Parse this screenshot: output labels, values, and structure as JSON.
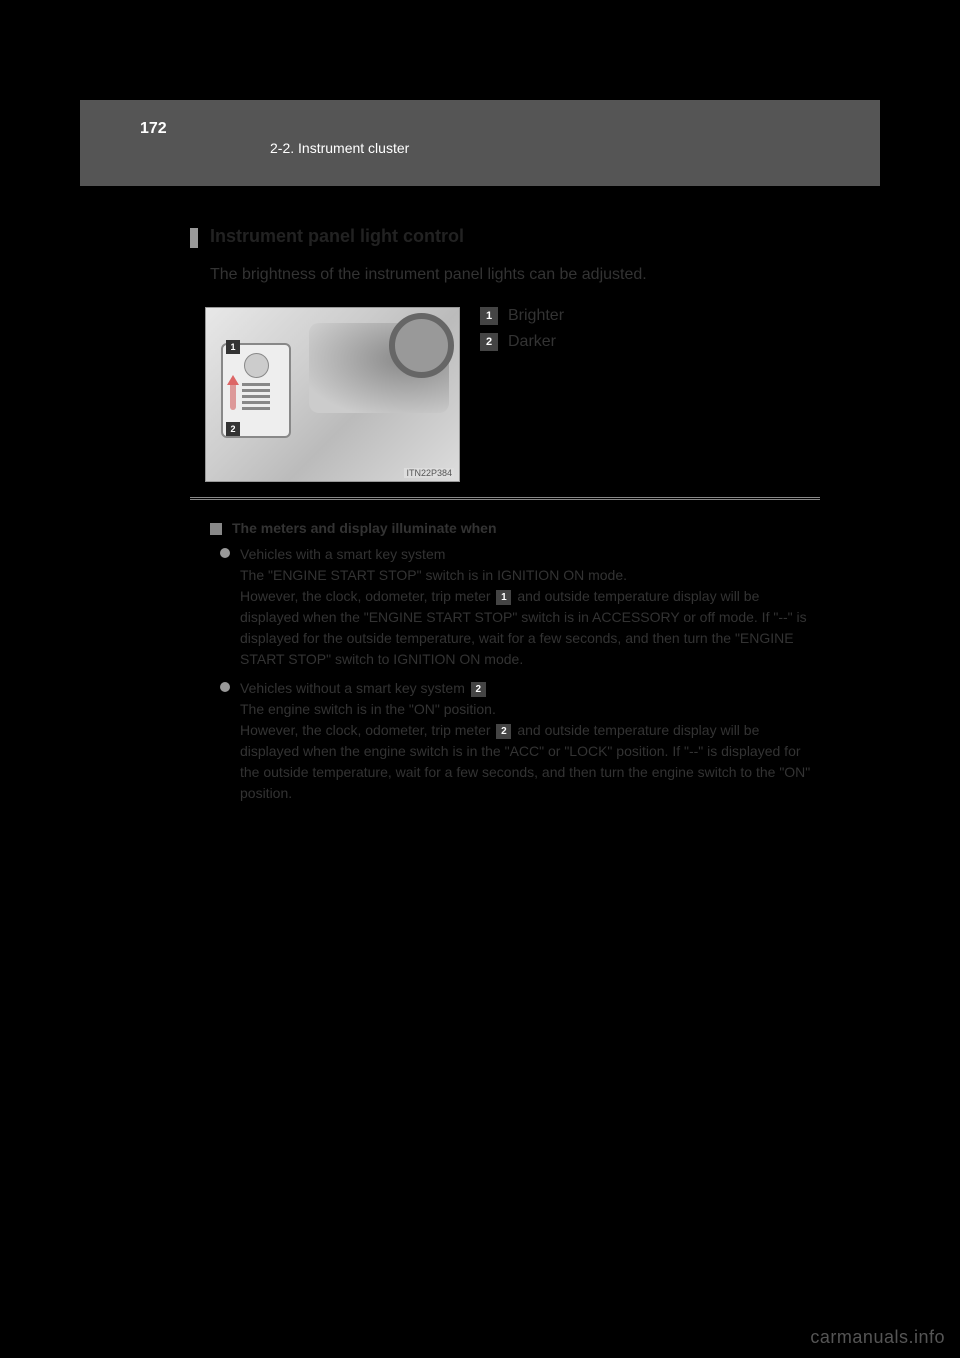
{
  "page": {
    "number": "172",
    "section": "2-2. Instrument cluster"
  },
  "topic": {
    "title": "Instrument panel light control",
    "intro": "The brightness of the instrument panel lights can be adjusted."
  },
  "figure": {
    "id": "ITN22P384",
    "callout1": "1",
    "callout2": "2",
    "legend": [
      {
        "num": "1",
        "text": "Brighter"
      },
      {
        "num": "2",
        "text": "Darker"
      }
    ]
  },
  "notes": {
    "heading": "The meters and display illuminate when",
    "bullet1": {
      "lead": "Vehicles with a smart key system",
      "body_a": "The \"ENGINE START STOP\" switch is in IGNITION ON mode.",
      "body_b": "However, the clock, odometer, trip meter ",
      "body_c": " and outside temperature display will be displayed when the \"ENGINE START STOP\" switch is in ACCESSORY or off mode. If \"--\" is displayed for the outside temperature, wait for a few seconds, and then turn the \"ENGINE START STOP\" switch to IGNITION ON mode."
    },
    "bullet2": {
      "lead": "Vehicles without a smart key system",
      "body_a": "The engine switch is in the \"ON\" position.",
      "body_b": "However, the clock, odometer, trip meter ",
      "body_c": " and outside temperature display will be displayed when the engine switch is in the \"ACC\" or \"LOCK\" position. If \"--\" is displayed for the outside temperature, wait for a few seconds, and then turn the engine switch to the \"ON\" position."
    },
    "inline1": "1",
    "inline2": "2"
  },
  "watermark": "carmanuals.info"
}
